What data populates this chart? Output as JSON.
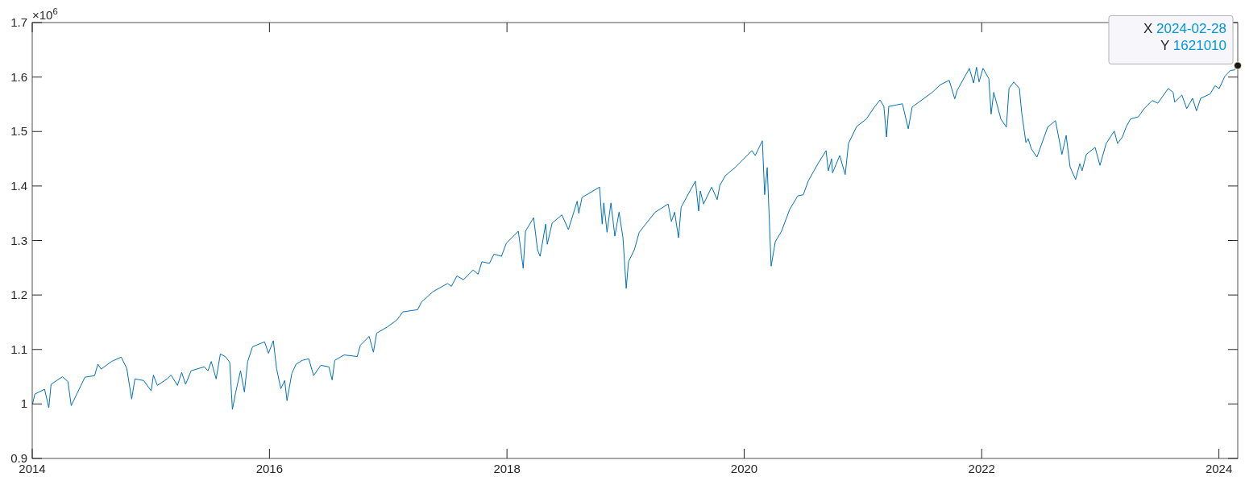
{
  "chart_data": {
    "type": "line",
    "x": [
      "2014-01-02",
      "2014-01-09",
      "2014-02-08",
      "2014-02-21",
      "2014-02-28",
      "2014-04-04",
      "2014-04-21",
      "2014-05-01",
      "2014-05-31",
      "2014-06-12",
      "2014-07-12",
      "2014-07-22",
      "2014-08-01",
      "2014-09-02",
      "2014-10-02",
      "2014-10-19",
      "2014-11-03",
      "2014-11-13",
      "2014-12-10",
      "2015-01-02",
      "2015-01-09",
      "2015-01-21",
      "2015-02-20",
      "2015-03-04",
      "2015-03-24",
      "2015-04-06",
      "2015-04-18",
      "2015-05-05",
      "2015-06-14",
      "2015-06-26",
      "2015-07-06",
      "2015-07-21",
      "2015-08-03",
      "2015-08-20",
      "2015-09-01",
      "2015-09-09",
      "2015-09-19",
      "2015-10-04",
      "2015-10-16",
      "2015-10-26",
      "2015-11-10",
      "2015-12-17",
      "2015-12-29",
      "2016-01-13",
      "2016-01-23",
      "2016-02-05",
      "2016-02-17",
      "2016-02-24",
      "2016-03-10",
      "2016-03-23",
      "2016-04-11",
      "2016-05-01",
      "2016-05-16",
      "2016-06-07",
      "2016-07-02",
      "2016-07-12",
      "2016-07-20",
      "2016-08-18",
      "2016-09-27",
      "2016-10-07",
      "2016-11-03",
      "2016-11-16",
      "2016-11-26",
      "2016-12-28",
      "2017-01-27",
      "2017-02-15",
      "2017-04-01",
      "2017-04-13",
      "2017-05-18",
      "2017-07-02",
      "2017-07-14",
      "2017-07-31",
      "2017-08-20",
      "2017-09-19",
      "2017-10-04",
      "2017-10-16",
      "2017-11-08",
      "2017-11-22",
      "2017-12-15",
      "2017-12-30",
      "2018-02-05",
      "2018-02-20",
      "2018-02-27",
      "2018-03-24",
      "2018-04-05",
      "2018-04-13",
      "2018-04-30",
      "2018-05-05",
      "2018-05-20",
      "2018-06-19",
      "2018-07-09",
      "2018-08-05",
      "2018-08-10",
      "2018-08-20",
      "2018-10-13",
      "2018-10-21",
      "2018-10-26",
      "2018-11-05",
      "2018-11-17",
      "2018-11-29",
      "2018-12-12",
      "2018-12-24",
      "2019-01-03",
      "2019-01-10",
      "2019-01-28",
      "2019-02-12",
      "2019-04-02",
      "2019-05-12",
      "2019-05-22",
      "2019-06-01",
      "2019-06-13",
      "2019-06-21",
      "2019-07-10",
      "2019-08-04",
      "2019-08-14",
      "2019-08-19",
      "2019-08-29",
      "2019-09-23",
      "2019-10-10",
      "2019-10-18",
      "2019-11-04",
      "2019-12-06",
      "2020-01-25",
      "2020-02-04",
      "2020-02-26",
      "2020-03-04",
      "2020-03-12",
      "2020-03-24",
      "2020-04-06",
      "2020-04-25",
      "2020-05-20",
      "2020-06-14",
      "2020-07-01",
      "2020-07-16",
      "2020-08-15",
      "2020-09-09",
      "2020-09-16",
      "2020-09-26",
      "2020-09-29",
      "2020-10-21",
      "2020-11-07",
      "2020-11-17",
      "2020-12-12",
      "2021-01-11",
      "2021-02-05",
      "2021-02-22",
      "2021-03-06",
      "2021-03-14",
      "2021-03-21",
      "2021-05-02",
      "2021-05-20",
      "2021-06-01",
      "2021-07-08",
      "2021-08-02",
      "2021-08-27",
      "2021-09-23",
      "2021-10-10",
      "2021-10-18",
      "2021-11-24",
      "2021-12-07",
      "2021-12-16",
      "2021-12-24",
      "2022-01-05",
      "2022-01-23",
      "2022-01-30",
      "2022-02-07",
      "2022-03-01",
      "2022-03-18",
      "2022-03-26",
      "2022-04-10",
      "2022-04-27",
      "2022-05-04",
      "2022-05-17",
      "2022-05-24",
      "2022-06-03",
      "2022-06-20",
      "2022-07-23",
      "2022-08-16",
      "2022-09-05",
      "2022-09-18",
      "2022-09-30",
      "2022-10-17",
      "2022-10-30",
      "2022-11-06",
      "2022-11-19",
      "2022-12-16",
      "2022-12-31",
      "2023-01-19",
      "2023-02-13",
      "2023-02-23",
      "2023-03-10",
      "2023-03-22",
      "2023-04-04",
      "2023-04-28",
      "2023-05-16",
      "2023-06-10",
      "2023-06-27",
      "2023-07-29",
      "2023-08-13",
      "2023-08-18",
      "2023-09-09",
      "2023-09-24",
      "2023-10-12",
      "2023-10-24",
      "2023-11-06",
      "2023-12-05",
      "2023-12-20",
      "2024-01-02",
      "2024-01-19",
      "2024-02-05",
      "2024-02-18",
      "2024-02-28"
    ],
    "series": [
      {
        "color": "#0072bd",
        "values": [
          1.0,
          1.018,
          1.027,
          0.993,
          1.036,
          1.05,
          1.041,
          0.997,
          1.034,
          1.049,
          1.052,
          1.073,
          1.064,
          1.078,
          1.086,
          1.065,
          1.009,
          1.046,
          1.043,
          1.024,
          1.053,
          1.034,
          1.046,
          1.053,
          1.034,
          1.058,
          1.036,
          1.061,
          1.068,
          1.061,
          1.078,
          1.046,
          1.092,
          1.086,
          1.076,
          0.99,
          1.021,
          1.061,
          1.022,
          1.078,
          1.105,
          1.114,
          1.093,
          1.116,
          1.065,
          1.028,
          1.043,
          1.006,
          1.056,
          1.073,
          1.08,
          1.083,
          1.052,
          1.071,
          1.068,
          1.044,
          1.08,
          1.09,
          1.087,
          1.108,
          1.124,
          1.095,
          1.13,
          1.141,
          1.154,
          1.169,
          1.173,
          1.187,
          1.206,
          1.221,
          1.216,
          1.235,
          1.228,
          1.246,
          1.238,
          1.261,
          1.258,
          1.275,
          1.271,
          1.295,
          1.317,
          1.249,
          1.317,
          1.342,
          1.283,
          1.271,
          1.33,
          1.293,
          1.332,
          1.347,
          1.32,
          1.372,
          1.35,
          1.379,
          1.398,
          1.33,
          1.369,
          1.315,
          1.369,
          1.308,
          1.352,
          1.305,
          1.212,
          1.261,
          1.283,
          1.315,
          1.352,
          1.367,
          1.335,
          1.352,
          1.305,
          1.361,
          1.382,
          1.409,
          1.354,
          1.391,
          1.367,
          1.398,
          1.375,
          1.401,
          1.419,
          1.435,
          1.465,
          1.456,
          1.483,
          1.384,
          1.434,
          1.253,
          1.298,
          1.317,
          1.357,
          1.382,
          1.384,
          1.409,
          1.441,
          1.465,
          1.428,
          1.45,
          1.424,
          1.456,
          1.421,
          1.478,
          1.509,
          1.523,
          1.545,
          1.558,
          1.546,
          1.49,
          1.546,
          1.551,
          1.505,
          1.545,
          1.561,
          1.572,
          1.586,
          1.594,
          1.56,
          1.576,
          1.616,
          1.589,
          1.618,
          1.591,
          1.616,
          1.597,
          1.532,
          1.572,
          1.523,
          1.508,
          1.579,
          1.591,
          1.579,
          1.535,
          1.48,
          1.487,
          1.468,
          1.453,
          1.508,
          1.52,
          1.458,
          1.493,
          1.435,
          1.412,
          1.441,
          1.428,
          1.458,
          1.471,
          1.438,
          1.478,
          1.501,
          1.478,
          1.49,
          1.509,
          1.523,
          1.527,
          1.542,
          1.557,
          1.552,
          1.579,
          1.572,
          1.554,
          1.567,
          1.542,
          1.561,
          1.538,
          1.561,
          1.569,
          1.584,
          1.579,
          1.601,
          1.612,
          1.613,
          1.62101
        ]
      }
    ],
    "xlim": [
      "2014-01-01",
      "2024-02-28"
    ],
    "xticks": [
      "2014",
      "2016",
      "2018",
      "2020",
      "2022",
      "2024"
    ],
    "ylim": [
      0.9,
      1.7
    ],
    "yticks": [
      0.9,
      1,
      1.1,
      1.2,
      1.3,
      1.4,
      1.5,
      1.6,
      1.7
    ],
    "annotations": [
      "×10$^{6}$",
      {
        "text": "X 2024-02-28\nY 1621010",
        "x": "2024-02-28",
        "y": 1.62101
      }
    ]
  }
}
